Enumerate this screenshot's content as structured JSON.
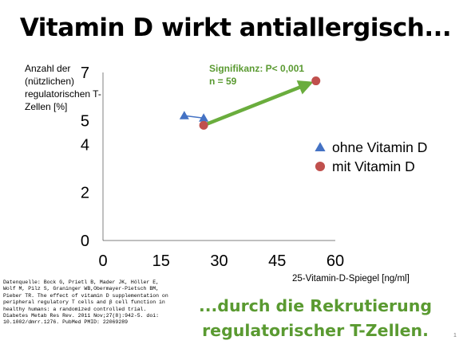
{
  "slide": {
    "title": "Vitamin D wirkt antiallergisch...",
    "subtitle_line1": "...durch die Rekrutierung",
    "subtitle_line2": "regulatorischer T-Zellen.",
    "page_number": "1",
    "source_text": "Datenquelle: Bock G, Prietl B, Mader JK, Höller E, Wolf M, Pilz S, Graninger WB,Obermayer-Pietsch BM, Pieber TR. The effect of vitamin D supplementation on peripheral regulatory T cells and β cell function in healthy humans: a randomized controlled trial. Diabetes Metab Res Rev. 2011 Nov;27(8):942-5. doi: 10.1002/dmrr.1276. PubMed PMID: 22069289"
  },
  "chart_data": {
    "type": "scatter",
    "title": "",
    "xlabel": "25-Vitamin-D-Spiegel [ng/ml]",
    "ylabel": "Anzahl der (nützlichen) regulatorischen T-Zellen [%]",
    "xlim": [
      0,
      60
    ],
    "ylim": [
      0,
      7
    ],
    "xticks": [
      "0",
      "15",
      "30",
      "45",
      "60"
    ],
    "yticks": [
      "0",
      "2",
      "4",
      "5",
      "7"
    ],
    "ytick_values": [
      0,
      2,
      4,
      5,
      7
    ],
    "series": [
      {
        "name": "ohne Vitamin D",
        "marker": "triangle",
        "color": "#4472c4",
        "points": [
          {
            "x": 21,
            "y": 5.2
          },
          {
            "x": 26,
            "y": 5.1
          }
        ],
        "connected": true
      },
      {
        "name": "mit Vitamin D",
        "marker": "circle",
        "color": "#c0504d",
        "points": [
          {
            "x": 26,
            "y": 4.8
          },
          {
            "x": 55,
            "y": 6.65
          }
        ],
        "connected": false
      }
    ],
    "arrow": {
      "from": {
        "x": 26,
        "y": 4.8
      },
      "to": {
        "x": 55,
        "y": 6.65
      },
      "color": "#6aad3d"
    },
    "annotation_line1": "Signifikanz: P< 0,001",
    "annotation_line2": "n = 59",
    "legend_position": "right",
    "grid": false
  }
}
